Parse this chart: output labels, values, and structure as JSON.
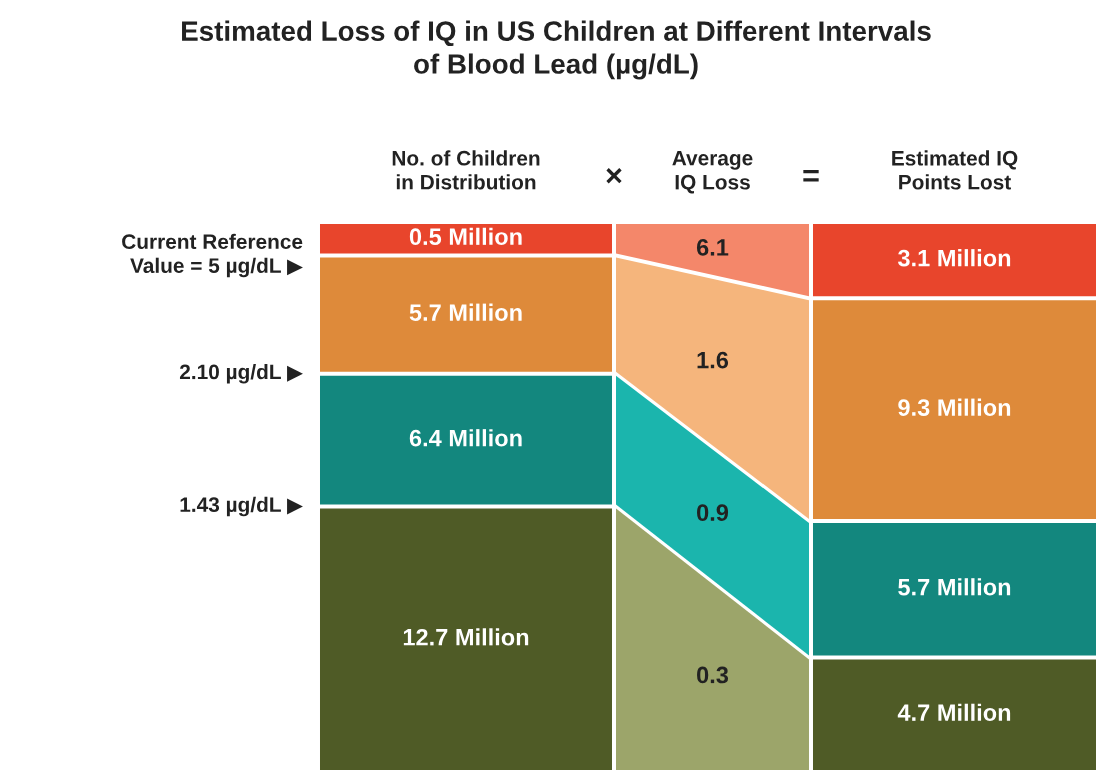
{
  "chart_data": {
    "type": "other",
    "title": "Estimated Loss of IQ in US Children at Different Intervals\nof Blood Lead (µg/dL)",
    "categories": [
      "No. of Children\nin Distribution",
      "Average\nIQ Loss",
      "Estimated IQ\nPoints Lost"
    ],
    "series": [
      {
        "colors": [
          "#e8452c",
          "#f4876a",
          "#e8452c"
        ],
        "values": [
          0.5,
          6.1,
          3.1
        ],
        "value_labels": [
          "0.5 Million",
          "6.1",
          "3.1 Million"
        ]
      },
      {
        "colors": [
          "#de8a3a",
          "#f5b57c",
          "#de8a3a"
        ],
        "values": [
          5.7,
          1.6,
          9.3
        ],
        "value_labels": [
          "5.7 Million",
          "1.6",
          "9.3 Million"
        ]
      },
      {
        "colors": [
          "#13877e",
          "#1bb5ad",
          "#13877e"
        ],
        "values": [
          6.4,
          0.9,
          5.7
        ],
        "value_labels": [
          "6.4 Million",
          "0.9",
          "5.7 Million"
        ]
      },
      {
        "colors": [
          "#4f5b26",
          "#9ca56a",
          "#4f5b26"
        ],
        "values": [
          12.7,
          0.3,
          4.7
        ],
        "value_labels": [
          "12.7 Million",
          "0.3",
          "4.7 Million"
        ]
      }
    ],
    "annotations": [
      "×",
      "=",
      "Current Reference\nValue = 5 µg/dL ▶",
      "2.10 µg/dL ▶",
      "1.43 µg/dL ▶"
    ]
  }
}
